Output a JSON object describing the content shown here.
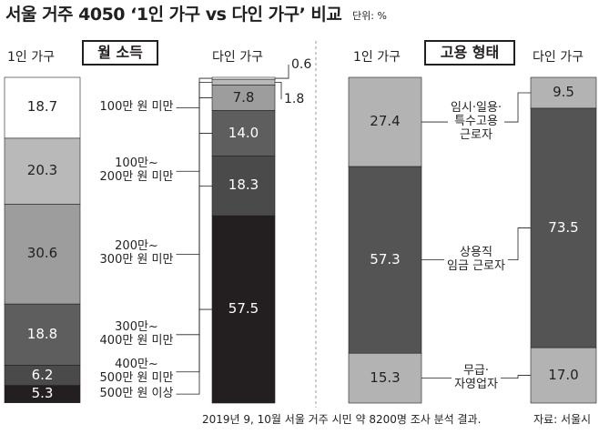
{
  "title": "서울 거주 4050 ‘1인 가구 vs 다인 가구’ 비교",
  "unit": "단위: %",
  "chart_data": [
    {
      "type": "bar",
      "stacked": true,
      "title": "월 소득",
      "categories": [
        "1인 가구",
        "다인 가구"
      ],
      "series": [
        {
          "name": "100만 원 미만",
          "color": "#ffffff",
          "values": [
            18.7,
            0.6
          ],
          "value_labels": [
            "18.7",
            "0.6"
          ]
        },
        {
          "name": "100만~\n200만 원 미만",
          "color": "#b9b9b9",
          "values": [
            20.3,
            1.8
          ],
          "value_labels": [
            "20.3",
            "1.8"
          ]
        },
        {
          "name": "200만~\n300만 원 미만",
          "color": "#9d9d9d",
          "values": [
            30.6,
            7.8
          ],
          "value_labels": [
            "30.6",
            "7.8"
          ]
        },
        {
          "name": "300만~\n400만 원 미만",
          "color": "#5e5e5e",
          "values": [
            18.8,
            14.0
          ],
          "value_labels": [
            "18.8",
            "14.0"
          ]
        },
        {
          "name": "400만~\n500만 원 미만",
          "color": "#4a4a4a",
          "values": [
            6.2,
            18.3
          ],
          "value_labels": [
            "6.2",
            "18.3"
          ]
        },
        {
          "name": "500만 원 이상",
          "color": "#231f20",
          "values": [
            5.3,
            57.5
          ],
          "value_labels": [
            "5.3",
            "57.5"
          ]
        }
      ]
    },
    {
      "type": "bar",
      "stacked": true,
      "title": "고용 형태",
      "categories": [
        "1인 가구",
        "다인 가구"
      ],
      "series": [
        {
          "name": "임시·일용·\n특수고용\n근로자",
          "color": "#b3b3b3",
          "values": [
            27.4,
            9.5
          ],
          "value_labels": [
            "27.4",
            "9.5"
          ]
        },
        {
          "name": "상용직\n임금 근로자",
          "color": "#545454",
          "values": [
            57.3,
            73.5
          ],
          "value_labels": [
            "57.3",
            "73.5"
          ]
        },
        {
          "name": "무급·\n자영업자",
          "color": "#b3b3b3",
          "values": [
            15.3,
            17.0
          ],
          "value_labels": [
            "15.3",
            "17.0"
          ]
        }
      ]
    }
  ],
  "source": "2019년 9, 10월 서울 거주 시민 약 8200명 조사 분석 결과.",
  "credit": "자료: 서울시"
}
